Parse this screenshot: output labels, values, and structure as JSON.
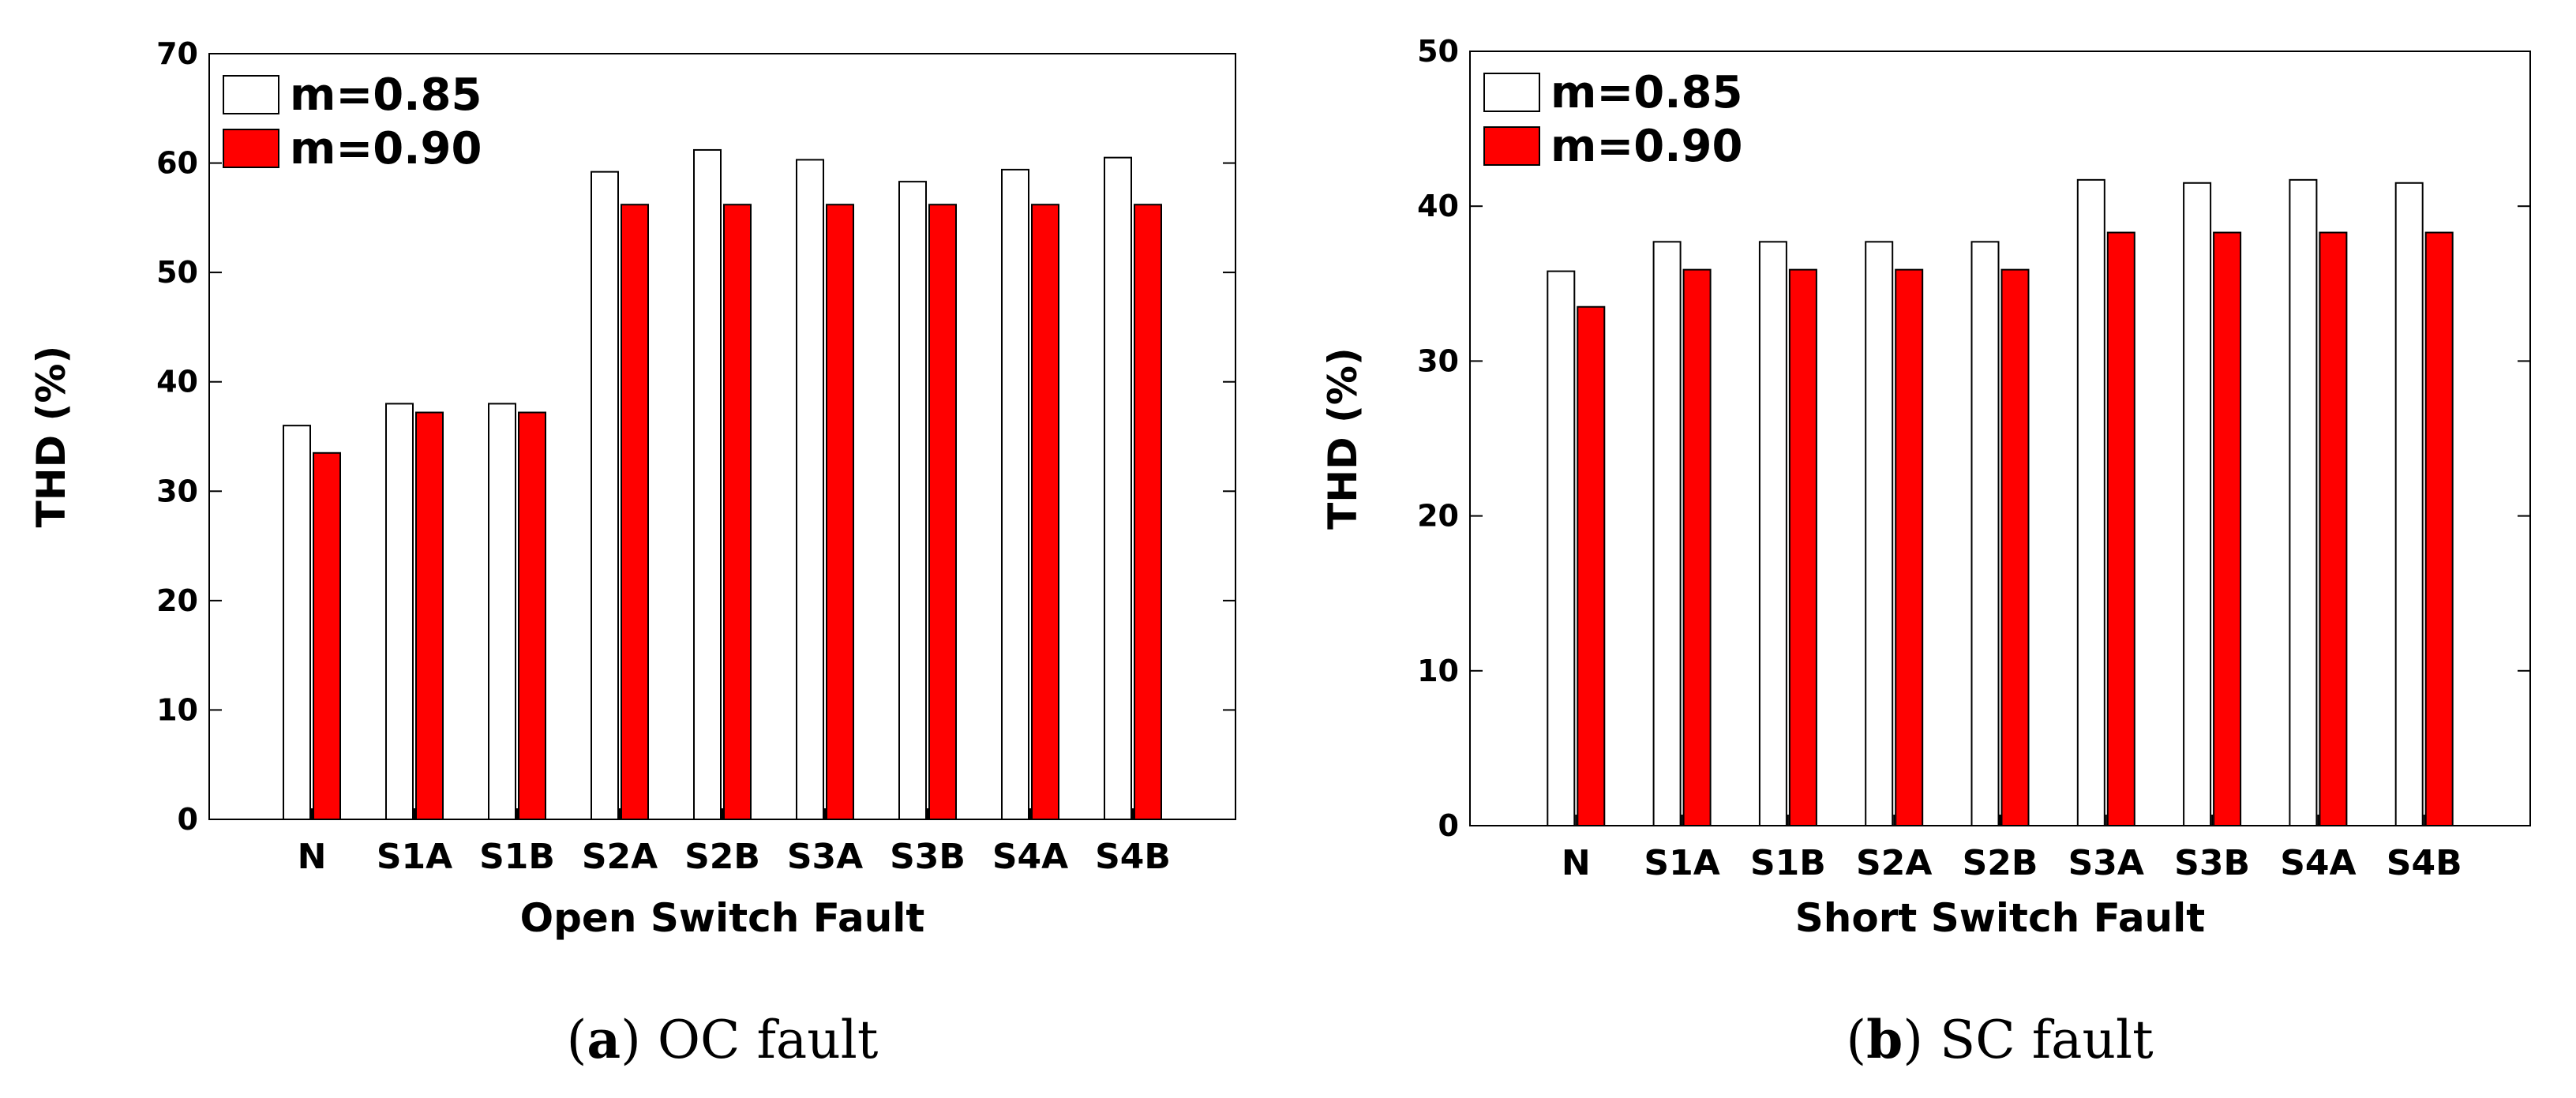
{
  "chart_data": [
    {
      "type": "bar",
      "caption_letter": "a",
      "caption_text": "OC fault",
      "xlabel": "Open Switch Fault",
      "ylabel": "THD (%)",
      "ylim": [
        0,
        70
      ],
      "yticks": [
        0,
        10,
        20,
        30,
        40,
        50,
        60,
        70
      ],
      "grid": false,
      "legend_position": "top-left",
      "categories": [
        "N",
        "S1A",
        "S1B",
        "S2A",
        "S2B",
        "S3A",
        "S3B",
        "S4A",
        "S4B"
      ],
      "series": [
        {
          "name": "m=0.85",
          "color": "#ffffff",
          "values": [
            36.0,
            38.0,
            38.0,
            59.2,
            61.2,
            60.3,
            58.3,
            59.4,
            60.5
          ]
        },
        {
          "name": "m=0.90",
          "color": "#ff0000",
          "values": [
            33.5,
            37.2,
            37.2,
            56.2,
            56.2,
            56.2,
            56.2,
            56.2,
            56.2
          ]
        }
      ]
    },
    {
      "type": "bar",
      "caption_letter": "b",
      "caption_text": "SC fault",
      "xlabel": "Short Switch Fault",
      "ylabel": "THD (%)",
      "ylim": [
        0,
        50
      ],
      "yticks": [
        0,
        10,
        20,
        30,
        40,
        50
      ],
      "grid": false,
      "legend_position": "top-left",
      "categories": [
        "N",
        "S1A",
        "S1B",
        "S2A",
        "S2B",
        "S3A",
        "S3B",
        "S4A",
        "S4B"
      ],
      "series": [
        {
          "name": "m=0.85",
          "color": "#ffffff",
          "values": [
            35.8,
            37.7,
            37.7,
            37.7,
            37.7,
            41.7,
            41.5,
            41.7,
            41.5
          ]
        },
        {
          "name": "m=0.90",
          "color": "#ff0000",
          "values": [
            33.5,
            35.9,
            35.9,
            35.9,
            35.9,
            38.3,
            38.3,
            38.3,
            38.3
          ]
        }
      ]
    }
  ]
}
